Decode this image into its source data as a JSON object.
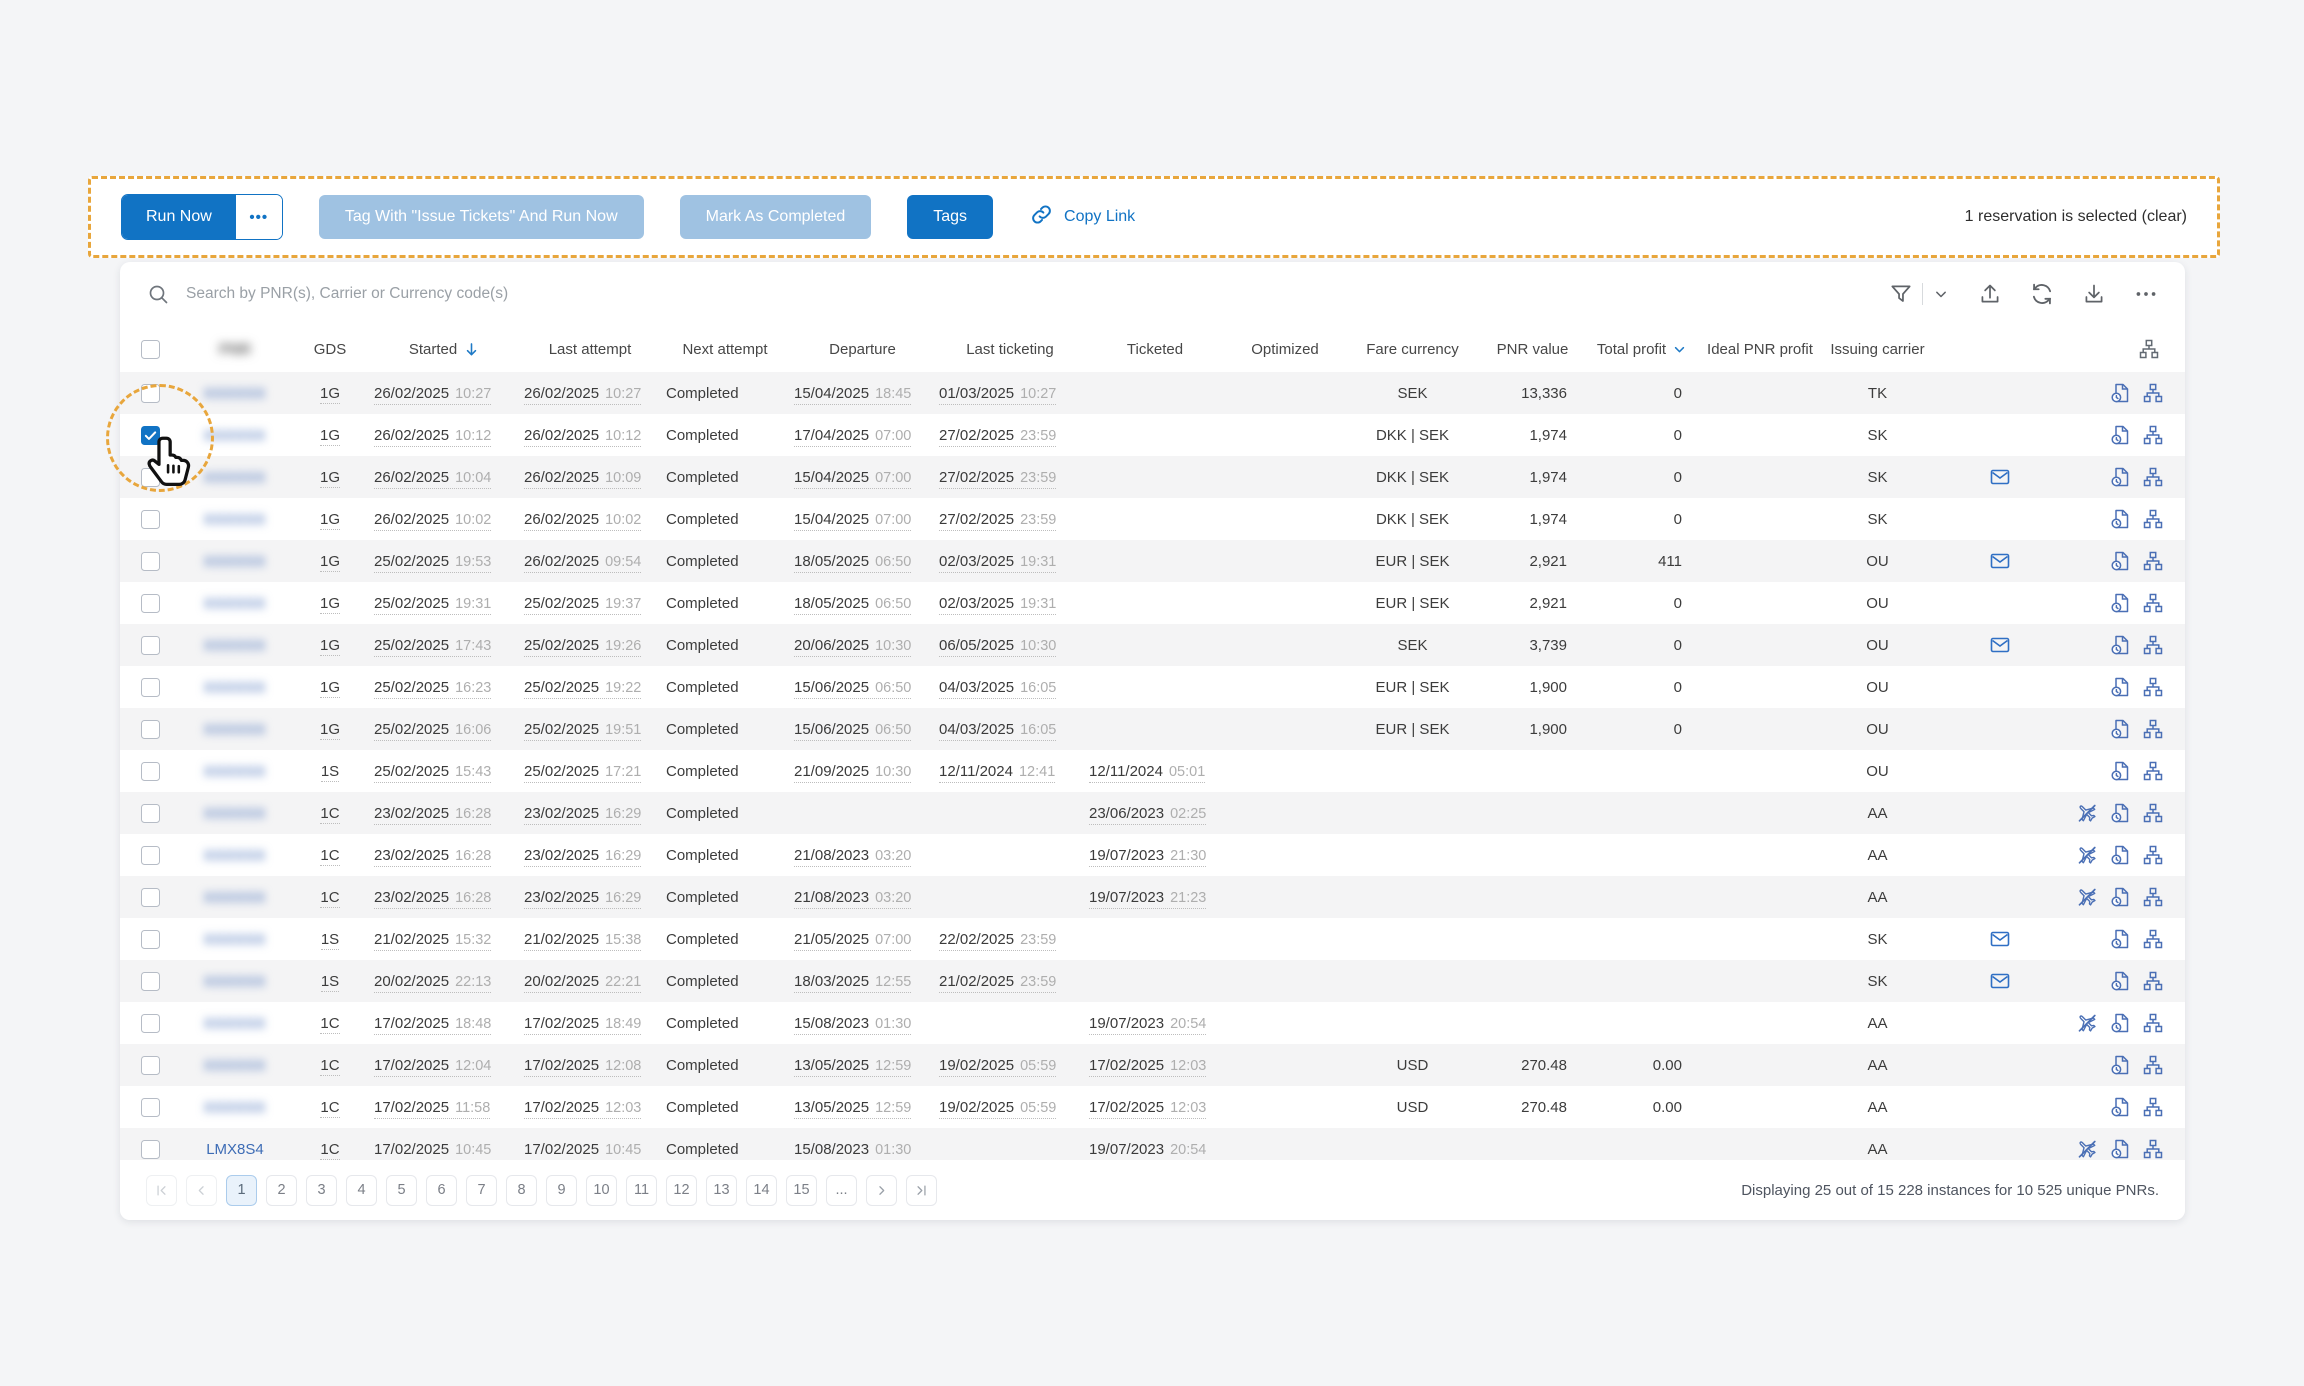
{
  "toolbar": {
    "run_now_label": "Run Now",
    "run_now_more_label": "•••",
    "tag_and_run_label": "Tag With \"Issue Tickets\" And Run Now",
    "mark_completed_label": "Mark As Completed",
    "tags_label": "Tags",
    "copy_link_label": "Copy Link",
    "selection_text": "1 reservation is selected",
    "clear_label": "(clear)"
  },
  "search": {
    "placeholder": "Search by PNR(s), Carrier or Currency code(s)",
    "icons": [
      "filter-icon",
      "chevron-down-icon",
      "upload-icon",
      "refresh-icon",
      "download-icon",
      "more-icon"
    ]
  },
  "table": {
    "columns": [
      "",
      "PNR",
      "GDS",
      "Started",
      "Last attempt",
      "Next attempt",
      "Departure",
      "Last ticketing",
      "Ticketed",
      "Optimized",
      "Fare currency",
      "PNR value",
      "Total profit",
      "Ideal PNR profit",
      "Issuing carrier",
      "",
      ""
    ],
    "pnr_column_redacted": true,
    "sort": {
      "column": "Started",
      "direction": "desc"
    },
    "total_profit_filter_icon": "chevron-down",
    "redacted_placeholder": "XXXXXX",
    "rows": [
      {
        "pnr": "",
        "redacted": true,
        "checked": false,
        "gds": "1G",
        "started": "26/02/2025 10:27",
        "last_attempt": "26/02/2025 10:27",
        "next_attempt": "Completed",
        "departure": "15/04/2025 18:45",
        "last_ticketing": "01/03/2025 10:27",
        "ticketed": "",
        "optimized": "",
        "fare_currency": "SEK",
        "pnr_value": "13,336",
        "total_profit": "0",
        "ideal_pnr_profit": "",
        "issuing_carrier": "TK",
        "envelope": false,
        "no_flight": false
      },
      {
        "pnr": "",
        "redacted": true,
        "checked": true,
        "gds": "1G",
        "started": "26/02/2025 10:12",
        "last_attempt": "26/02/2025 10:12",
        "next_attempt": "Completed",
        "departure": "17/04/2025 07:00",
        "last_ticketing": "27/02/2025 23:59",
        "ticketed": "",
        "optimized": "",
        "fare_currency": "DKK | SEK",
        "pnr_value": "1,974",
        "total_profit": "0",
        "ideal_pnr_profit": "",
        "issuing_carrier": "SK",
        "envelope": false,
        "no_flight": false
      },
      {
        "pnr": "",
        "redacted": true,
        "checked": false,
        "gds": "1G",
        "started": "26/02/2025 10:04",
        "last_attempt": "26/02/2025 10:09",
        "next_attempt": "Completed",
        "departure": "15/04/2025 07:00",
        "last_ticketing": "27/02/2025 23:59",
        "ticketed": "",
        "optimized": "",
        "fare_currency": "DKK | SEK",
        "pnr_value": "1,974",
        "total_profit": "0",
        "ideal_pnr_profit": "",
        "issuing_carrier": "SK",
        "envelope": true,
        "no_flight": false
      },
      {
        "pnr": "",
        "redacted": true,
        "checked": false,
        "gds": "1G",
        "started": "26/02/2025 10:02",
        "last_attempt": "26/02/2025 10:02",
        "next_attempt": "Completed",
        "departure": "15/04/2025 07:00",
        "last_ticketing": "27/02/2025 23:59",
        "ticketed": "",
        "optimized": "",
        "fare_currency": "DKK | SEK",
        "pnr_value": "1,974",
        "total_profit": "0",
        "ideal_pnr_profit": "",
        "issuing_carrier": "SK",
        "envelope": false,
        "no_flight": false
      },
      {
        "pnr": "",
        "redacted": true,
        "checked": false,
        "gds": "1G",
        "started": "25/02/2025 19:53",
        "last_attempt": "26/02/2025 09:54",
        "next_attempt": "Completed",
        "departure": "18/05/2025 06:50",
        "last_ticketing": "02/03/2025 19:31",
        "ticketed": "",
        "optimized": "",
        "fare_currency": "EUR | SEK",
        "pnr_value": "2,921",
        "total_profit": "411",
        "ideal_pnr_profit": "",
        "issuing_carrier": "OU",
        "envelope": true,
        "no_flight": false
      },
      {
        "pnr": "",
        "redacted": true,
        "checked": false,
        "gds": "1G",
        "started": "25/02/2025 19:31",
        "last_attempt": "25/02/2025 19:37",
        "next_attempt": "Completed",
        "departure": "18/05/2025 06:50",
        "last_ticketing": "02/03/2025 19:31",
        "ticketed": "",
        "optimized": "",
        "fare_currency": "EUR | SEK",
        "pnr_value": "2,921",
        "total_profit": "0",
        "ideal_pnr_profit": "",
        "issuing_carrier": "OU",
        "envelope": false,
        "no_flight": false
      },
      {
        "pnr": "",
        "redacted": true,
        "checked": false,
        "gds": "1G",
        "started": "25/02/2025 17:43",
        "last_attempt": "25/02/2025 19:26",
        "next_attempt": "Completed",
        "departure": "20/06/2025 10:30",
        "last_ticketing": "06/05/2025 10:30",
        "ticketed": "",
        "optimized": "",
        "fare_currency": "SEK",
        "pnr_value": "3,739",
        "total_profit": "0",
        "ideal_pnr_profit": "",
        "issuing_carrier": "OU",
        "envelope": true,
        "no_flight": false
      },
      {
        "pnr": "",
        "redacted": true,
        "checked": false,
        "gds": "1G",
        "started": "25/02/2025 16:23",
        "last_attempt": "25/02/2025 19:22",
        "next_attempt": "Completed",
        "departure": "15/06/2025 06:50",
        "last_ticketing": "04/03/2025 16:05",
        "ticketed": "",
        "optimized": "",
        "fare_currency": "EUR | SEK",
        "pnr_value": "1,900",
        "total_profit": "0",
        "ideal_pnr_profit": "",
        "issuing_carrier": "OU",
        "envelope": false,
        "no_flight": false
      },
      {
        "pnr": "",
        "redacted": true,
        "checked": false,
        "gds": "1G",
        "started": "25/02/2025 16:06",
        "last_attempt": "25/02/2025 19:51",
        "next_attempt": "Completed",
        "departure": "15/06/2025 06:50",
        "last_ticketing": "04/03/2025 16:05",
        "ticketed": "",
        "optimized": "",
        "fare_currency": "EUR | SEK",
        "pnr_value": "1,900",
        "total_profit": "0",
        "ideal_pnr_profit": "",
        "issuing_carrier": "OU",
        "envelope": false,
        "no_flight": false
      },
      {
        "pnr": "",
        "redacted": true,
        "checked": false,
        "gds": "1S",
        "started": "25/02/2025 15:43",
        "last_attempt": "25/02/2025 17:21",
        "next_attempt": "Completed",
        "departure": "21/09/2025 10:30",
        "last_ticketing": "12/11/2024 12:41",
        "ticketed": "12/11/2024 05:01",
        "optimized": "",
        "fare_currency": "",
        "pnr_value": "",
        "total_profit": "",
        "ideal_pnr_profit": "",
        "issuing_carrier": "OU",
        "envelope": false,
        "no_flight": false
      },
      {
        "pnr": "",
        "redacted": true,
        "checked": false,
        "gds": "1C",
        "started": "23/02/2025 16:28",
        "last_attempt": "23/02/2025 16:29",
        "next_attempt": "Completed",
        "departure": "",
        "last_ticketing": "",
        "ticketed": "23/06/2023 02:25",
        "optimized": "",
        "fare_currency": "",
        "pnr_value": "",
        "total_profit": "",
        "ideal_pnr_profit": "",
        "issuing_carrier": "AA",
        "envelope": false,
        "no_flight": true
      },
      {
        "pnr": "",
        "redacted": true,
        "checked": false,
        "gds": "1C",
        "started": "23/02/2025 16:28",
        "last_attempt": "23/02/2025 16:29",
        "next_attempt": "Completed",
        "departure": "21/08/2023 03:20",
        "last_ticketing": "",
        "ticketed": "19/07/2023 21:30",
        "optimized": "",
        "fare_currency": "",
        "pnr_value": "",
        "total_profit": "",
        "ideal_pnr_profit": "",
        "issuing_carrier": "AA",
        "envelope": false,
        "no_flight": true
      },
      {
        "pnr": "",
        "redacted": true,
        "checked": false,
        "gds": "1C",
        "started": "23/02/2025 16:28",
        "last_attempt": "23/02/2025 16:29",
        "next_attempt": "Completed",
        "departure": "21/08/2023 03:20",
        "last_ticketing": "",
        "ticketed": "19/07/2023 21:23",
        "optimized": "",
        "fare_currency": "",
        "pnr_value": "",
        "total_profit": "",
        "ideal_pnr_profit": "",
        "issuing_carrier": "AA",
        "envelope": false,
        "no_flight": true
      },
      {
        "pnr": "",
        "redacted": true,
        "checked": false,
        "gds": "1S",
        "started": "21/02/2025 15:32",
        "last_attempt": "21/02/2025 15:38",
        "next_attempt": "Completed",
        "departure": "21/05/2025 07:00",
        "last_ticketing": "22/02/2025 23:59",
        "ticketed": "",
        "optimized": "",
        "fare_currency": "",
        "pnr_value": "",
        "total_profit": "",
        "ideal_pnr_profit": "",
        "issuing_carrier": "SK",
        "envelope": true,
        "no_flight": false
      },
      {
        "pnr": "",
        "redacted": true,
        "checked": false,
        "gds": "1S",
        "started": "20/02/2025 22:13",
        "last_attempt": "20/02/2025 22:21",
        "next_attempt": "Completed",
        "departure": "18/03/2025 12:55",
        "last_ticketing": "21/02/2025 23:59",
        "ticketed": "",
        "optimized": "",
        "fare_currency": "",
        "pnr_value": "",
        "total_profit": "",
        "ideal_pnr_profit": "",
        "issuing_carrier": "SK",
        "envelope": true,
        "no_flight": false
      },
      {
        "pnr": "",
        "redacted": true,
        "checked": false,
        "gds": "1C",
        "started": "17/02/2025 18:48",
        "last_attempt": "17/02/2025 18:49",
        "next_attempt": "Completed",
        "departure": "15/08/2023 01:30",
        "last_ticketing": "",
        "ticketed": "19/07/2023 20:54",
        "optimized": "",
        "fare_currency": "",
        "pnr_value": "",
        "total_profit": "",
        "ideal_pnr_profit": "",
        "issuing_carrier": "AA",
        "envelope": false,
        "no_flight": true
      },
      {
        "pnr": "",
        "redacted": true,
        "checked": false,
        "gds": "1C",
        "started": "17/02/2025 12:04",
        "last_attempt": "17/02/2025 12:08",
        "next_attempt": "Completed",
        "departure": "13/05/2025 12:59",
        "last_ticketing": "19/02/2025 05:59",
        "ticketed": "17/02/2025 12:03",
        "optimized": "",
        "fare_currency": "USD",
        "pnr_value": "270.48",
        "total_profit": "0.00",
        "ideal_pnr_profit": "",
        "issuing_carrier": "AA",
        "envelope": false,
        "no_flight": false
      },
      {
        "pnr": "",
        "redacted": true,
        "checked": false,
        "gds": "1C",
        "started": "17/02/2025 11:58",
        "last_attempt": "17/02/2025 12:03",
        "next_attempt": "Completed",
        "departure": "13/05/2025 12:59",
        "last_ticketing": "19/02/2025 05:59",
        "ticketed": "17/02/2025 12:03",
        "optimized": "",
        "fare_currency": "USD",
        "pnr_value": "270.48",
        "total_profit": "0.00",
        "ideal_pnr_profit": "",
        "issuing_carrier": "AA",
        "envelope": false,
        "no_flight": false
      },
      {
        "pnr": "LMX8S4",
        "redacted": false,
        "checked": false,
        "gds": "1C",
        "started": "17/02/2025 10:45",
        "last_attempt": "17/02/2025 10:45",
        "next_attempt": "Completed",
        "departure": "15/08/2023 01:30",
        "last_ticketing": "",
        "ticketed": "19/07/2023 20:54",
        "optimized": "",
        "fare_currency": "",
        "pnr_value": "",
        "total_profit": "",
        "ideal_pnr_profit": "",
        "issuing_carrier": "AA",
        "envelope": false,
        "no_flight": true
      }
    ]
  },
  "pagination": {
    "current": "1",
    "pages": [
      "1",
      "2",
      "3",
      "4",
      "5",
      "6",
      "7",
      "8",
      "9",
      "10",
      "11",
      "12",
      "13",
      "14",
      "15"
    ],
    "ellipsis": "..."
  },
  "footer": {
    "summary": "Displaying 25 out of 15 228 instances for 10 525 unique PNRs."
  },
  "annotation": {
    "type": "dashed-circle-with-cursor",
    "target": "selected-row-checkbox",
    "color": "#E8A63C"
  },
  "colors": {
    "primary": "#1173C4",
    "disabled_button": "#9FC2E2",
    "action_icon": "#4A6FB5",
    "envelope_icon": "#2F6FC4",
    "annotation": "#E8A63C",
    "row_shade": "#F4F4F5"
  }
}
